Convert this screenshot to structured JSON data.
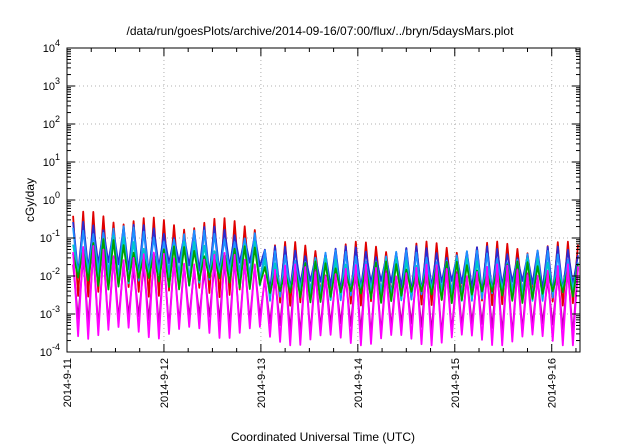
{
  "chart_data": {
    "type": "line",
    "title": "/data/run/goesPlots/archive/2014-09-16/07:00/flux/../bryn/5daysMars.plot",
    "xlabel": "Coordinated Universal Time (UTC)",
    "ylabel": "cGy/day",
    "yscale": "log",
    "ylim": [
      0.0001,
      10000
    ],
    "xlim": [
      "2014-09-11 00:00",
      "2014-09-16 07:00"
    ],
    "grid": true,
    "legend": "none",
    "x_ticks": [
      "2014-9-11",
      "2014-9-12",
      "2014-9-13",
      "2014-9-14",
      "2014-9-15",
      "2014-9-16"
    ],
    "y_ticks": [
      {
        "value": 0.0001,
        "base": "10",
        "exp": "-4"
      },
      {
        "value": 0.001,
        "base": "10",
        "exp": "-3"
      },
      {
        "value": 0.01,
        "base": "10",
        "exp": "-2"
      },
      {
        "value": 0.1,
        "base": "10",
        "exp": "-1"
      },
      {
        "value": 1,
        "base": "10",
        "exp": "0"
      },
      {
        "value": 10,
        "base": "10",
        "exp": "1"
      },
      {
        "value": 100,
        "base": "10",
        "exp": "2"
      },
      {
        "value": 1000,
        "base": "10",
        "exp": "3"
      },
      {
        "value": 10000,
        "base": "10",
        "exp": "4"
      }
    ],
    "sawtooth_period_hours": 2.5,
    "series": [
      {
        "color": "#e00000",
        "phase1": {
          "peak": 0.25,
          "min": 0.005
        },
        "phase2": {
          "peak": 0.06,
          "min": 0.003
        }
      },
      {
        "color": "#2a2ad0",
        "phase1": {
          "peak": 0.15,
          "min": 0.02
        },
        "phase2": {
          "peak": 0.045,
          "min": 0.0065
        }
      },
      {
        "color": "#1e90ff",
        "phase1": {
          "peak": 0.12,
          "min": 0.012
        },
        "phase2": {
          "peak": 0.035,
          "min": 0.004
        }
      },
      {
        "color": "#00c8c8",
        "phase1": {
          "peak": 0.06,
          "min": 0.01
        },
        "phase2": {
          "peak": 0.022,
          "min": 0.004
        }
      },
      {
        "color": "#00a000",
        "phase1": {
          "peak": 0.045,
          "min": 0.008
        },
        "phase2": {
          "peak": 0.018,
          "min": 0.0035
        }
      },
      {
        "color": "#b4009e",
        "phase1": {
          "peak": 0.02,
          "min": 0.0008
        },
        "phase2": {
          "peak": 0.012,
          "min": 0.0005
        }
      },
      {
        "color": "#ff00ff",
        "phase1": {
          "peak": 0.03,
          "min": 0.0004
        },
        "phase2": {
          "peak": 0.015,
          "min": 0.00025
        }
      }
    ]
  }
}
